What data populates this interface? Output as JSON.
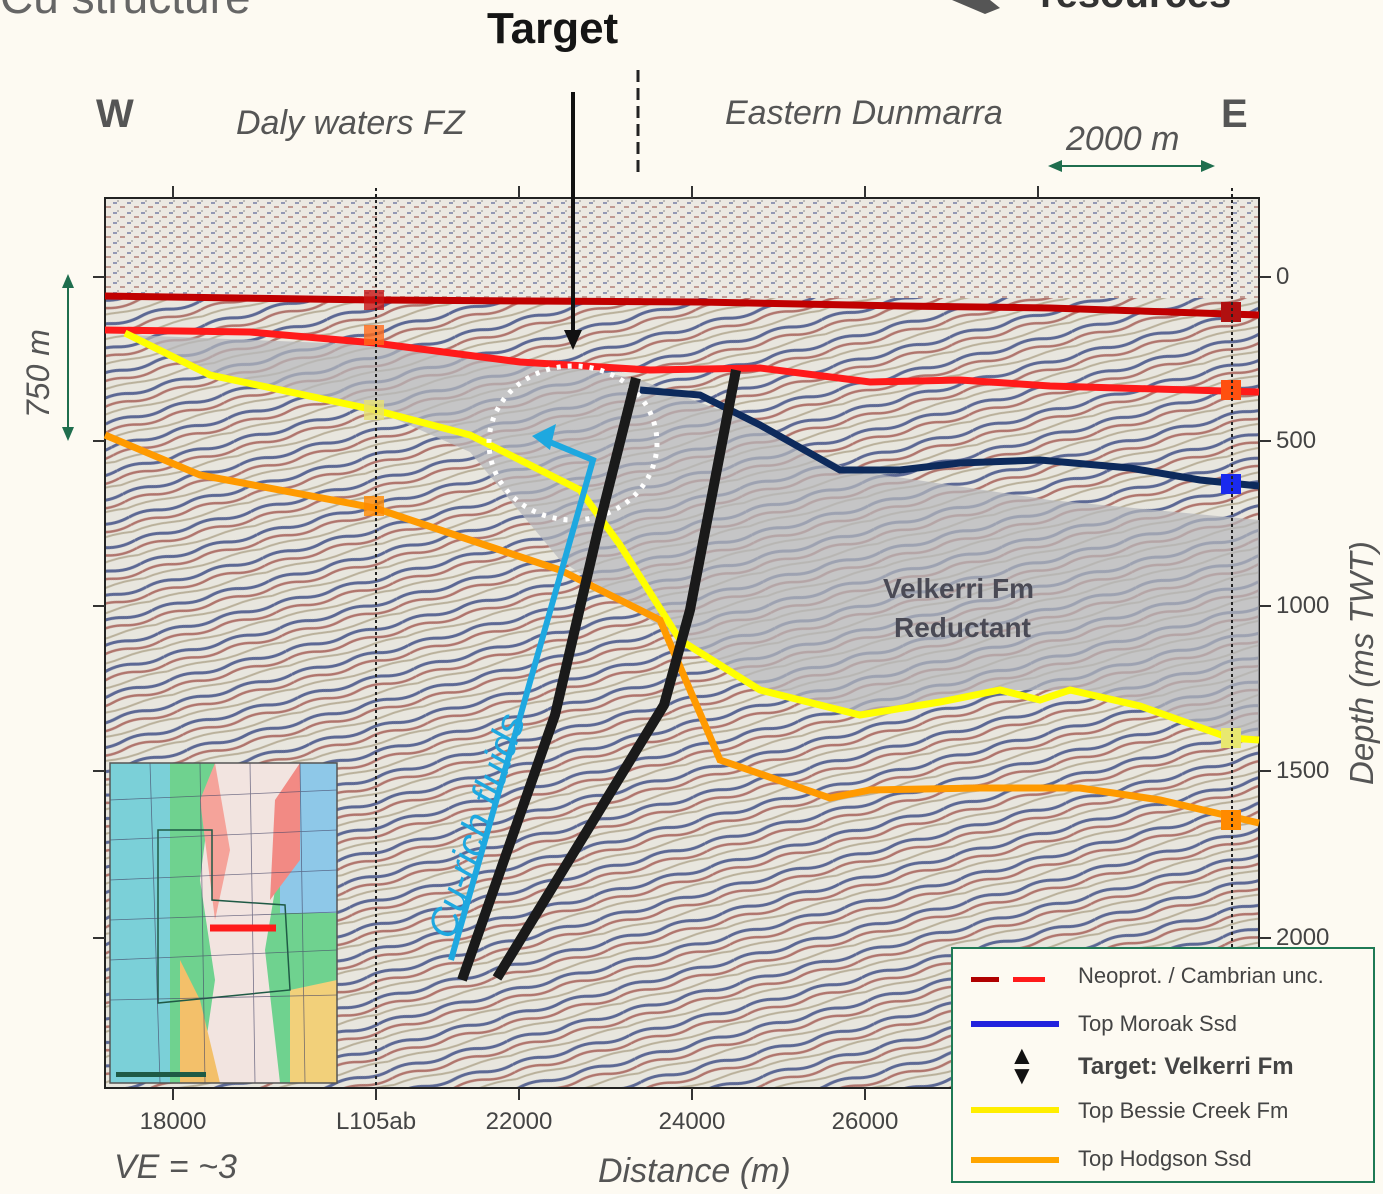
{
  "header": {
    "target_label": "Target",
    "partial_left": "Cu structure",
    "partial_right": "resources",
    "west": "W",
    "east": "E",
    "region_west": "Daly waters FZ",
    "region_east": "Eastern Dunmarra",
    "horizontal_scale": "2000 m",
    "vertical_scale": "750 m"
  },
  "section": {
    "formation_label_1": "Velkerri Fm",
    "formation_label_2": "Reductant",
    "fluid_label": "Cu-rich fluids",
    "ve_label": "VE = ~3"
  },
  "axes": {
    "x_ticks": [
      "18000",
      "L105ab",
      "22000",
      "24000",
      "26000"
    ],
    "y_ticks": [
      "0",
      "500",
      "1000",
      "1500",
      "2000"
    ],
    "x_label": "Distance (m)",
    "y_label": "Depth (ms TWT)"
  },
  "legend": {
    "items": [
      {
        "label": "Neoprot. / Cambrian unc.",
        "color": "#cc1111"
      },
      {
        "label": "Top Moroak Ssd",
        "color": "#2222dd"
      },
      {
        "label": "Target: Velkerri Fm",
        "color": "#222222"
      },
      {
        "label": "Top Bessie Creek Fm",
        "color": "#ffee00"
      },
      {
        "label": "Top Hodgson Ssd",
        "color": "#ffa500"
      }
    ]
  },
  "colors": {
    "unconformity_dark": "#c00000",
    "unconformity_red": "#ff1a1a",
    "moroak": "#0d2a5c",
    "bessie_creek": "#ffff00",
    "hodgson": "#ff9a00",
    "fault": "#1a1a1a",
    "fluid": "#1ea8e0",
    "scale_arrow": "#1f6e4e"
  }
}
